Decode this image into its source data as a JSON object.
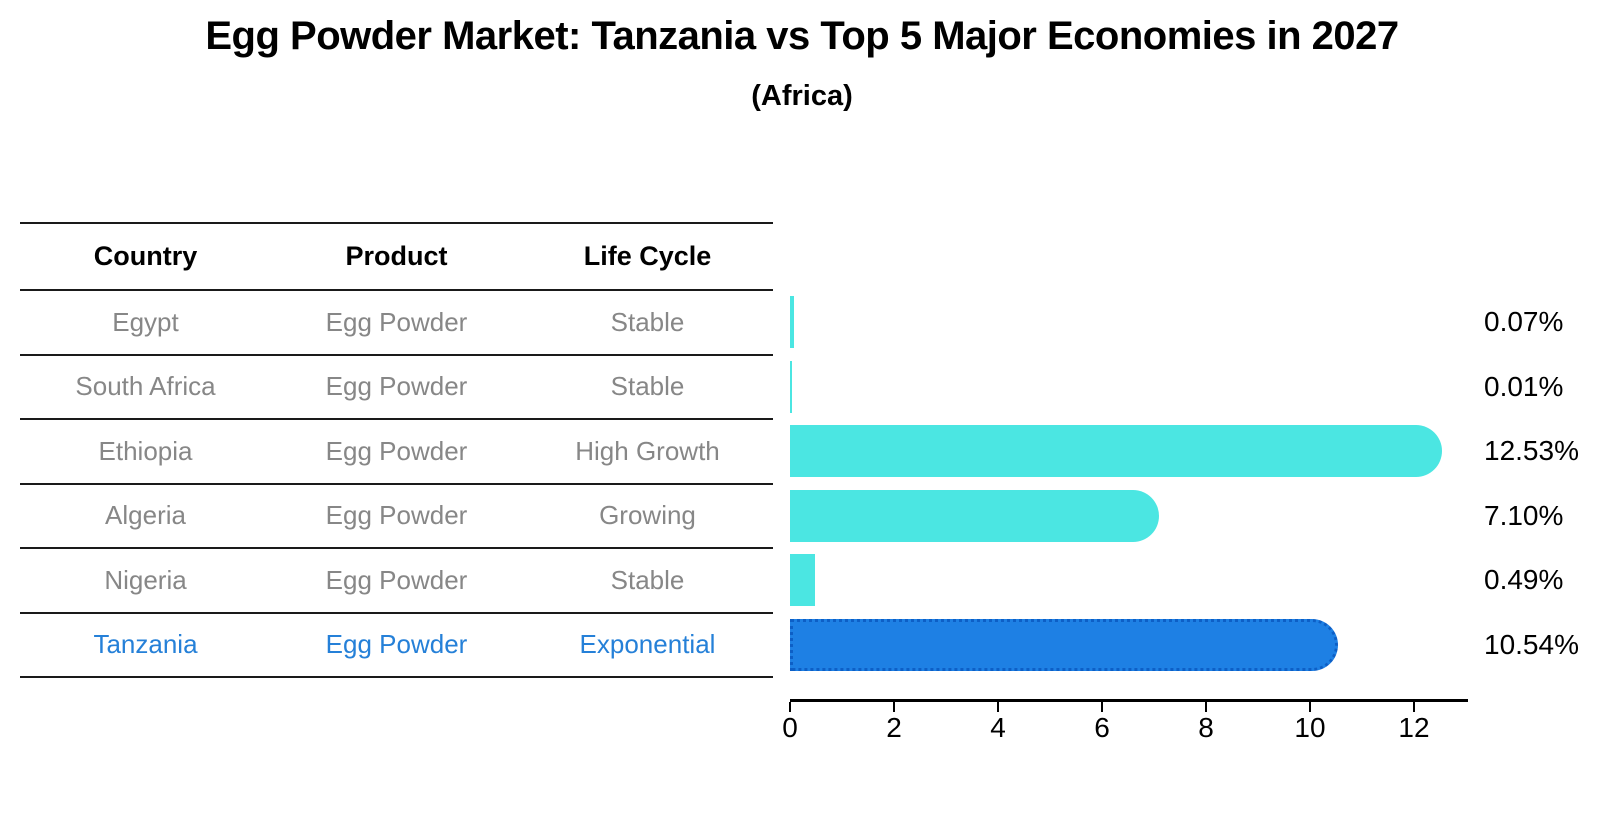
{
  "title": "Egg Powder Market: Tanzania vs Top 5 Major Economies in 2027",
  "subtitle": "(Africa)",
  "table": {
    "headers": [
      "Country",
      "Product",
      "Life Cycle"
    ],
    "rows": [
      {
        "country": "Egypt",
        "product": "Egg Powder",
        "life_cycle": "Stable",
        "highlighted": false
      },
      {
        "country": "South Africa",
        "product": "Egg Powder",
        "life_cycle": "Stable",
        "highlighted": false
      },
      {
        "country": "Ethiopia",
        "product": "Egg Powder",
        "life_cycle": "High Growth",
        "highlighted": false
      },
      {
        "country": "Algeria",
        "product": "Egg Powder",
        "life_cycle": "Growing",
        "highlighted": false
      },
      {
        "country": "Nigeria",
        "product": "Egg Powder",
        "life_cycle": "Stable",
        "highlighted": false
      },
      {
        "country": "Tanzania",
        "product": "Egg Powder",
        "life_cycle": "Exponential",
        "highlighted": true
      }
    ]
  },
  "chart_data": {
    "type": "bar",
    "orientation": "horizontal",
    "title": "Egg Powder Market: Tanzania vs Top 5 Major Economies in 2027",
    "subtitle": "(Africa)",
    "categories": [
      "Egypt",
      "South Africa",
      "Ethiopia",
      "Algeria",
      "Nigeria",
      "Tanzania"
    ],
    "values": [
      0.07,
      0.01,
      12.53,
      7.1,
      0.49,
      10.54
    ],
    "value_labels": [
      "0.07%",
      "0.01%",
      "12.53%",
      "7.10%",
      "0.49%",
      "10.54%"
    ],
    "unit": "percent",
    "highlight_index": 5,
    "x_ticks": [
      0,
      2,
      4,
      6,
      8,
      10,
      12
    ],
    "xlim": [
      0,
      13.04
    ],
    "grid": false,
    "legend": false,
    "colors": {
      "bar_default": "#4be6e2",
      "bar_highlight": "#1e80e4",
      "bar_highlight_border": "#0d5fc6",
      "highlight_text": "#2580d8",
      "table_text": "#878787",
      "axis_text": "#000000"
    }
  }
}
